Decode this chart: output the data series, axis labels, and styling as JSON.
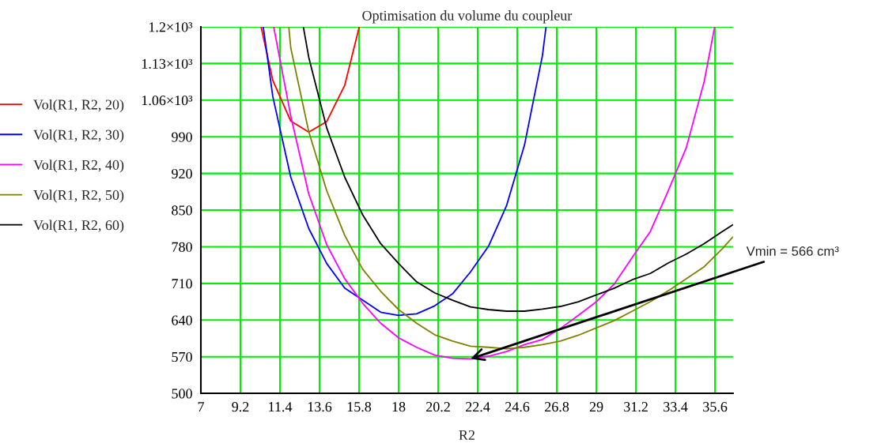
{
  "chart_data": {
    "type": "line",
    "title": "Optimisation du volume du coupleur",
    "xlabel": "R2",
    "xlim": [
      7,
      36.6
    ],
    "xticks": [
      7,
      9.2,
      11.4,
      13.6,
      15.8,
      18,
      20.2,
      22.4,
      24.6,
      26.8,
      29,
      31.2,
      33.4,
      35.6
    ],
    "ylim": [
      500,
      1200
    ],
    "yticks": [
      500,
      570,
      640,
      710,
      780,
      850,
      920,
      990,
      {
        "value": 1060,
        "label": "1.06×10³"
      },
      {
        "value": 1130,
        "label": "1.13×10³"
      },
      {
        "value": 1200,
        "label": "1.2×10³"
      }
    ],
    "grid": true,
    "legend": "left",
    "marker": "none",
    "line_style": "solid",
    "series": [
      {
        "name": "Vol(R1, R2, 20)",
        "color": "#ff0000",
        "x": [
          10.35,
          11,
          12,
          13,
          14,
          15,
          15.81
        ],
        "values": [
          1200,
          1098,
          1020,
          999,
          1019,
          1088,
          1200
        ]
      },
      {
        "name": "Vol(R1, R2, 30)",
        "color": "#0000ff",
        "x": [
          10.47,
          11,
          12,
          13,
          14,
          15,
          16,
          17,
          18,
          19,
          20,
          21,
          22,
          23,
          24,
          25,
          26,
          26.2
        ],
        "values": [
          1200,
          1067,
          913,
          815,
          748,
          701,
          678,
          655,
          649,
          652,
          667,
          690,
          732,
          781,
          858,
          974,
          1145,
          1200
        ]
      },
      {
        "name": "Vol(R1, R2, 40)",
        "color": "#ff00ff",
        "x": [
          11.05,
          12,
          13,
          14,
          15,
          16,
          17,
          18,
          19,
          20,
          21,
          22,
          23,
          24,
          25,
          26,
          27,
          28,
          29,
          30,
          31,
          32,
          33,
          34,
          35,
          35.58
        ],
        "values": [
          1200,
          1030,
          881,
          784,
          719,
          672,
          634,
          606,
          588,
          573,
          567,
          566,
          571,
          580,
          593,
          603,
          624,
          649,
          675,
          709,
          760,
          809,
          887,
          969,
          1096,
          1200
        ]
      },
      {
        "name": "Vol(R1, R2, 50)",
        "color": "#808000",
        "x": [
          11.89,
          12,
          13,
          14,
          15,
          16,
          17,
          18,
          19,
          20,
          21,
          22,
          23,
          24,
          25,
          26,
          27,
          28,
          29,
          30,
          31,
          32,
          33,
          34,
          35,
          36,
          36.6
        ],
        "values": [
          1200,
          1160,
          1000,
          887,
          802,
          737,
          695,
          660,
          634,
          612,
          600,
          590,
          588,
          585,
          588,
          593,
          600,
          611,
          625,
          639,
          657,
          675,
          696,
          719,
          742,
          776,
          799
        ]
      },
      {
        "name": "Vol(R1, R2, 60)",
        "color": "#000000",
        "x": [
          12.7,
          13,
          14,
          15,
          16,
          17,
          18,
          19,
          20,
          21,
          22,
          23,
          24,
          25,
          26,
          27,
          28,
          29,
          30,
          31,
          32,
          33,
          34,
          35,
          36,
          36.6
        ],
        "values": [
          1200,
          1142,
          1007,
          913,
          841,
          786,
          748,
          713,
          692,
          678,
          665,
          660,
          657,
          657,
          661,
          666,
          675,
          688,
          701,
          717,
          729,
          749,
          766,
          786,
          809,
          822
        ]
      }
    ],
    "annotations": [
      {
        "text": "Vmin = 566 cm³",
        "x": 22,
        "y": 566
      }
    ]
  }
}
